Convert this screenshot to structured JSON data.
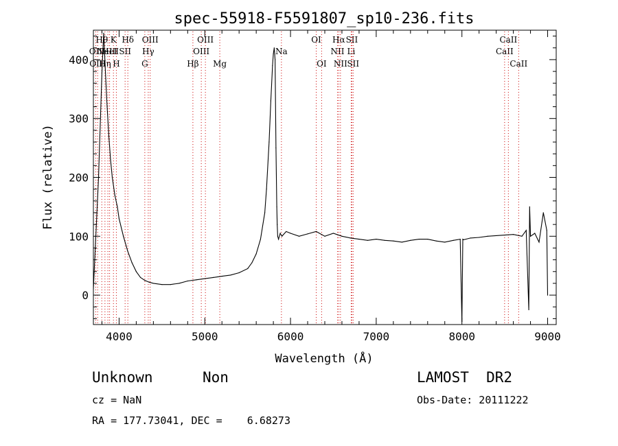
{
  "title": "spec-55918-F5591807_sp10-236.fits",
  "chart_data": {
    "type": "line",
    "title": "spec-55918-F5591807_sp10-236.fits",
    "xlabel": "Wavelength (Å)",
    "ylabel": "Flux (relative)",
    "xlim": [
      3700,
      9100
    ],
    "ylim": [
      -50,
      450
    ],
    "x_ticks": [
      4000,
      5000,
      6000,
      7000,
      8000,
      9000
    ],
    "y_ticks": [
      0,
      100,
      200,
      300,
      400
    ],
    "grid": false,
    "line_color": "#000000",
    "marker_color": "#cc0000",
    "series": [
      {
        "x": [
          3700,
          3760,
          3800,
          3820,
          3840,
          3860,
          3880,
          3900,
          3920,
          3950,
          3980,
          4000,
          4050,
          4100,
          4150,
          4200,
          4250,
          4300,
          4350,
          4400,
          4500,
          4600,
          4700,
          4800,
          4900,
          5000,
          5100,
          5200,
          5300,
          5400,
          5500,
          5550,
          5600,
          5650,
          5700,
          5720,
          5750,
          5770,
          5790,
          5800,
          5810,
          5820,
          5830,
          5840,
          5845,
          5850,
          5860,
          5880,
          5900,
          5950,
          6000,
          6100,
          6200,
          6300,
          6400,
          6500,
          6600,
          6700,
          6800,
          6900,
          7000,
          7100,
          7200,
          7300,
          7400,
          7500,
          7600,
          7700,
          7800,
          7900,
          7980,
          8000,
          8010,
          8020,
          8100,
          8200,
          8300,
          8400,
          8500,
          8600,
          8700,
          8750,
          8780,
          8790,
          8800,
          8850,
          8900,
          8950,
          8990,
          9000
        ],
        "y": [
          10,
          200,
          380,
          445,
          380,
          320,
          270,
          230,
          200,
          170,
          150,
          130,
          100,
          75,
          55,
          40,
          30,
          25,
          22,
          20,
          18,
          18,
          20,
          24,
          26,
          28,
          30,
          32,
          34,
          38,
          45,
          55,
          70,
          95,
          140,
          180,
          260,
          330,
          390,
          410,
          420,
          400,
          250,
          150,
          120,
          100,
          95,
          105,
          100,
          108,
          105,
          100,
          104,
          108,
          100,
          105,
          100,
          97,
          95,
          93,
          95,
          93,
          92,
          90,
          93,
          95,
          95,
          92,
          90,
          93,
          95,
          -45,
          95,
          94,
          97,
          98,
          100,
          101,
          102,
          103,
          100,
          110,
          -25,
          150,
          100,
          105,
          90,
          140,
          110,
          0
        ]
      }
    ],
    "lines": [
      {
        "wl": 3727,
        "labels": [
          "OII"
        ],
        "row": 2
      },
      {
        "wl": 3750,
        "labels": [
          "OIII"
        ],
        "row": 3
      },
      {
        "wl": 3798,
        "labels": [
          "Hθ"
        ],
        "row": 1
      },
      {
        "wl": 3835,
        "labels": [
          "Hη"
        ],
        "row": 3
      },
      {
        "wl": 3869,
        "labels": [
          "NeIII"
        ],
        "row": 2
      },
      {
        "wl": 3889,
        "labels": [
          "HeI"
        ],
        "row": 2
      },
      {
        "wl": 3934,
        "labels": [
          "K"
        ],
        "row": 1
      },
      {
        "wl": 3968,
        "labels": [
          "H"
        ],
        "row": 3
      },
      {
        "wl": 4070,
        "labels": [
          "SII"
        ],
        "row": 2
      },
      {
        "wl": 4102,
        "labels": [
          "Hδ"
        ],
        "row": 1
      },
      {
        "wl": 4300,
        "labels": [
          "G"
        ],
        "row": 3
      },
      {
        "wl": 4340,
        "labels": [
          "Hγ"
        ],
        "row": 2
      },
      {
        "wl": 4363,
        "labels": [
          "OIII"
        ],
        "row": 1
      },
      {
        "wl": 4861,
        "labels": [
          "Hβ"
        ],
        "row": 3
      },
      {
        "wl": 4959,
        "labels": [
          "OIII"
        ],
        "row": 2
      },
      {
        "wl": 5007,
        "labels": [
          "OIII"
        ],
        "row": 1
      },
      {
        "wl": 5175,
        "labels": [
          "Mg"
        ],
        "row": 3
      },
      {
        "wl": 5894,
        "labels": [
          "Na"
        ],
        "row": 2
      },
      {
        "wl": 6300,
        "labels": [
          "OI"
        ],
        "row": 1
      },
      {
        "wl": 6363,
        "labels": [
          "OI"
        ],
        "row": 3
      },
      {
        "wl": 6548,
        "labels": [
          "NII"
        ],
        "row": 2
      },
      {
        "wl": 6563,
        "labels": [
          "Hα"
        ],
        "row": 1
      },
      {
        "wl": 6583,
        "labels": [
          "NII"
        ],
        "row": 3
      },
      {
        "wl": 6708,
        "labels": [
          "Li"
        ],
        "row": 2
      },
      {
        "wl": 6716,
        "labels": [
          "SII"
        ],
        "row": 1
      },
      {
        "wl": 6731,
        "labels": [
          "SII"
        ],
        "row": 3
      },
      {
        "wl": 8498,
        "labels": [
          "CaII"
        ],
        "row": 2
      },
      {
        "wl": 8542,
        "labels": [
          "CaII"
        ],
        "row": 1
      },
      {
        "wl": 8662,
        "labels": [
          "CaII"
        ],
        "row": 3
      }
    ]
  },
  "info": {
    "classification": "Unknown",
    "subclass": "Non",
    "survey": "LAMOST  DR2",
    "redshift": "cz = NaN",
    "obs_date": "Obs-Date: 20111222",
    "coords": "RA = 177.73041, DEC =    6.68273"
  }
}
